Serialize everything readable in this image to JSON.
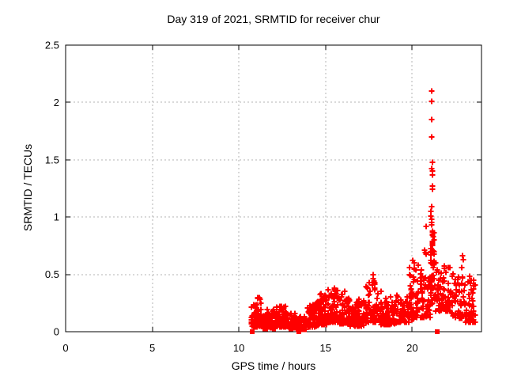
{
  "chart_data": {
    "type": "scatter",
    "title": "Day 319 of 2021, SRMTID for receiver chur",
    "xlabel": "GPS time / hours",
    "ylabel": "SRMTID / TECUs",
    "xlim": [
      0,
      24
    ],
    "ylim": [
      0,
      2.5
    ],
    "xticks": [
      0,
      5,
      10,
      15,
      20
    ],
    "xtick_labels": [
      "0",
      "5",
      "10",
      "15",
      "20"
    ],
    "yticks": [
      0,
      0.5,
      1,
      1.5,
      2,
      2.5
    ],
    "ytick_labels": [
      "0",
      "0.5",
      "1",
      "1.5",
      "2",
      "2.5"
    ],
    "grid": {
      "x": [
        5,
        10,
        15,
        20
      ],
      "y": [
        0.5,
        1,
        1.5,
        2
      ]
    },
    "legend": "none",
    "series_name": "SRMTID",
    "marker": {
      "type": "plus",
      "color": "#ff0000",
      "size": 7,
      "stroke": 2
    },
    "zero_marker": {
      "type": "filled-square",
      "color": "#ff0000",
      "size": 6
    },
    "colors": {
      "grid": "#b3b3b3",
      "border": "#000000",
      "text": "#000000",
      "points": "#ff0000"
    },
    "seed": 319,
    "data_x_extent": [
      10.7,
      23.65
    ],
    "peak_value": 2.1,
    "peak_time": 21.13,
    "zero_points": [
      [
        10.75,
        0
      ],
      [
        13.45,
        0
      ],
      [
        21.45,
        0
      ]
    ],
    "clusters": [
      [
        10.7,
        11.05,
        45,
        0.04,
        0.24,
        2.0
      ],
      [
        11.05,
        11.35,
        40,
        0.05,
        0.31,
        2.0
      ],
      [
        11.35,
        12.1,
        85,
        0.03,
        0.2,
        2.0
      ],
      [
        12.1,
        12.75,
        65,
        0.04,
        0.24,
        2.0
      ],
      [
        12.75,
        13.3,
        55,
        0.03,
        0.16,
        1.8
      ],
      [
        13.3,
        13.95,
        55,
        0.02,
        0.14,
        1.8
      ],
      [
        13.95,
        14.55,
        60,
        0.04,
        0.26,
        2.0
      ],
      [
        14.55,
        15.1,
        60,
        0.06,
        0.33,
        2.0
      ],
      [
        15.1,
        15.8,
        70,
        0.08,
        0.37,
        2.0
      ],
      [
        15.8,
        16.4,
        60,
        0.07,
        0.33,
        2.0
      ],
      [
        16.4,
        17.3,
        80,
        0.05,
        0.28,
        2.0
      ],
      [
        17.3,
        18.2,
        75,
        0.08,
        0.44,
        2.2
      ],
      [
        18.2,
        19.1,
        70,
        0.06,
        0.31,
        2.0
      ],
      [
        19.1,
        19.8,
        55,
        0.08,
        0.33,
        2.0
      ],
      [
        19.8,
        20.15,
        35,
        0.1,
        0.6,
        1.7
      ],
      [
        20.15,
        20.6,
        35,
        0.12,
        0.56,
        1.8
      ],
      [
        20.6,
        21.05,
        40,
        0.12,
        0.5,
        1.6
      ],
      [
        21.05,
        21.35,
        48,
        0.24,
        0.88,
        1.2
      ],
      [
        21.35,
        22.2,
        75,
        0.18,
        0.58,
        1.7
      ],
      [
        22.2,
        23.1,
        60,
        0.12,
        0.52,
        1.8
      ],
      [
        23.1,
        23.65,
        45,
        0.08,
        0.46,
        1.7
      ]
    ],
    "highlight_points": [
      [
        21.13,
        2.1
      ],
      [
        21.13,
        2.01
      ],
      [
        21.12,
        1.85
      ],
      [
        21.12,
        1.7
      ],
      [
        21.16,
        1.48
      ],
      [
        21.14,
        1.42
      ],
      [
        21.15,
        1.4
      ],
      [
        21.16,
        1.37
      ],
      [
        21.15,
        1.27
      ],
      [
        21.16,
        1.24
      ],
      [
        21.14,
        1.09
      ],
      [
        21.1,
        1.05
      ],
      [
        21.09,
        1.01
      ],
      [
        21.12,
        0.98
      ],
      [
        21.12,
        0.95
      ],
      [
        21.13,
        0.93
      ],
      [
        20.79,
        0.92
      ],
      [
        21.15,
        0.88
      ],
      [
        21.18,
        0.85
      ],
      [
        21.2,
        0.83
      ],
      [
        21.24,
        0.8
      ],
      [
        21.15,
        0.77
      ],
      [
        21.17,
        0.75
      ],
      [
        20.71,
        0.71
      ],
      [
        20.77,
        0.69
      ],
      [
        20.81,
        0.68
      ],
      [
        22.9,
        0.66
      ],
      [
        22.93,
        0.63
      ],
      [
        20.05,
        0.62
      ],
      [
        20.1,
        0.6
      ],
      [
        20.35,
        0.58
      ],
      [
        22.87,
        0.56
      ],
      [
        17.76,
        0.5
      ],
      [
        17.73,
        0.46
      ],
      [
        17.8,
        0.44
      ],
      [
        23.3,
        0.48
      ],
      [
        23.42,
        0.45
      ],
      [
        11.18,
        0.3
      ],
      [
        11.22,
        0.28
      ],
      [
        14.75,
        0.33
      ],
      [
        15.5,
        0.38
      ],
      [
        16.1,
        0.35
      ]
    ]
  }
}
